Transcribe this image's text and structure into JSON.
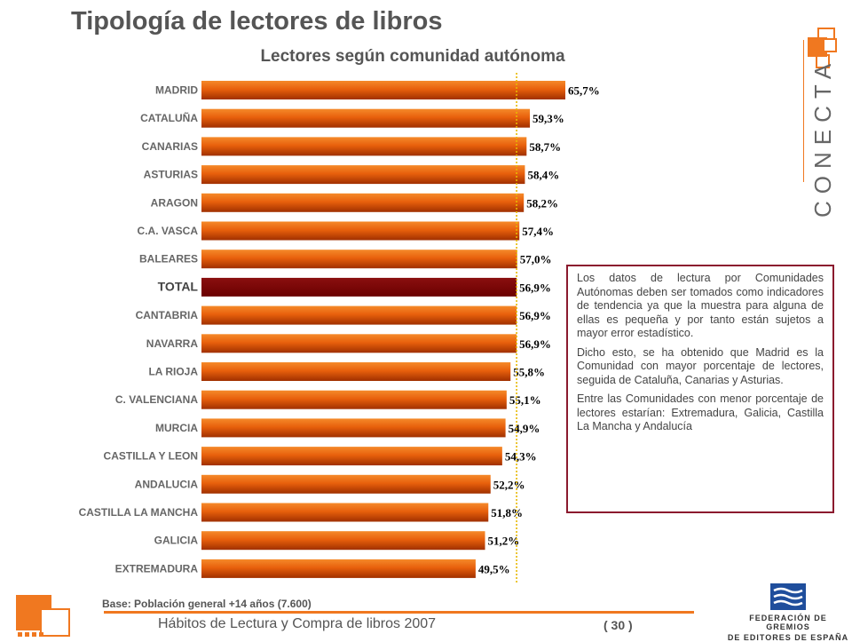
{
  "title": "Tipología de lectores de libros",
  "brand_text": "CONECTA",
  "chart_data": {
    "type": "bar",
    "orientation": "horizontal",
    "title": "Lectores según comunidad autónoma",
    "categories": [
      "MADRID",
      "CATALUÑA",
      "CANARIAS",
      "ASTURIAS",
      "ARAGON",
      "C.A. VASCA",
      "BALEARES",
      "TOTAL",
      "CANTABRIA",
      "NAVARRA",
      "LA RIOJA",
      "C. VALENCIANA",
      "MURCIA",
      "CASTILLA Y LEON",
      "ANDALUCIA",
      "CASTILLA LA MANCHA",
      "GALICIA",
      "EXTREMADURA"
    ],
    "values": [
      65.7,
      59.3,
      58.7,
      58.4,
      58.2,
      57.4,
      57.0,
      56.9,
      56.9,
      56.9,
      55.8,
      55.1,
      54.9,
      54.3,
      52.2,
      51.8,
      51.2,
      49.5
    ],
    "value_labels": [
      "65,7%",
      "59,3%",
      "58,7%",
      "58,4%",
      "58,2%",
      "57,4%",
      "57,0%",
      "56,9%",
      "56,9%",
      "56,9%",
      "55,8%",
      "55,1%",
      "54,9%",
      "54,3%",
      "52,2%",
      "51,8%",
      "51,2%",
      "49,5%"
    ],
    "highlight": "TOTAL",
    "reference_value": 56.9,
    "xlim": [
      0,
      65.7
    ],
    "colors": {
      "bar": "#e8600c",
      "bar_dark": "#a03000",
      "highlight": "#6b0000",
      "reference_line": "#e8b800"
    }
  },
  "note": {
    "paragraphs": [
      "Los datos de lectura por Comunidades Autónomas deben ser tomados como indicadores de tendencia ya que la muestra para alguna de ellas es pequeña y por tanto están sujetos a mayor error estadístico.",
      "Dicho esto, se ha obtenido que Madrid es la Comunidad con mayor porcentaje de lectores, seguida de Cataluña, Canarias y Asturias.",
      "Entre las Comunidades con menor porcentaje de lectores estarían: Extremadura, Galicia, Castilla La Mancha y Andalucía"
    ]
  },
  "base_note": "Base:  Población general +14 años (7.600)",
  "footer": {
    "text": "Hábitos de Lectura y Compra de libros 2007",
    "page": "( 30 )"
  },
  "org_logo": {
    "line1": "FEDERACIÓN DE GREMIOS",
    "line2": "DE EDITORES DE ESPAÑA"
  }
}
